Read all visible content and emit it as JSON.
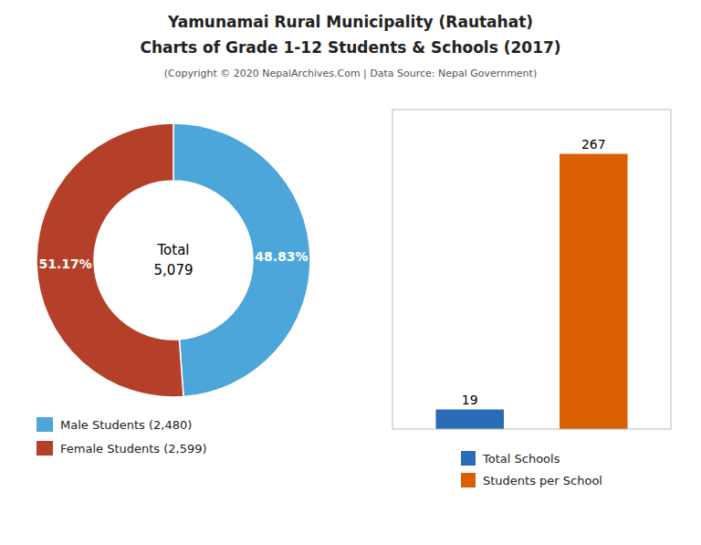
{
  "title": [
    "Yamunamai Rural Municipality (Rautahat)",
    "Charts of Grade 1-12 Students & Schools (2017)"
  ],
  "subtitle": "(Copyright © 2020 NepalArchives.Com | Data Source: Nepal Government)",
  "chart_data": [
    {
      "type": "pie",
      "categories": [
        "Male Students (2,480)",
        "Female Students (2,599)"
      ],
      "values": [
        48.83,
        51.17
      ],
      "value_labels": [
        "48.83%",
        "51.17%"
      ],
      "colors": [
        "#4da6d9",
        "#b5402a"
      ],
      "annotations": [
        "Total",
        "5,079"
      ],
      "data_labels": true,
      "legend": "lower left"
    },
    {
      "type": "bar",
      "categories": [
        "Total Schools",
        "Students per School"
      ],
      "values": [
        19,
        267
      ],
      "colors": [
        "#2b6cb8",
        "#d95f02"
      ],
      "ylim": [
        0,
        310
      ],
      "grid": false,
      "tick_labels": false,
      "data_labels": true,
      "legend": "lower center"
    }
  ]
}
